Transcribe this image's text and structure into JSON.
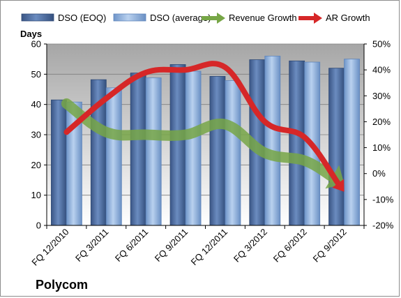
{
  "company": "Polycom",
  "chart_data": {
    "type": "bar",
    "categories": [
      "FQ 12/2010",
      "FQ 3/2011",
      "FQ 6/2011",
      "FQ 9/2011",
      "FQ 12/2011",
      "FQ 3/2012",
      "FQ 6/2012",
      "FQ 9/2012"
    ],
    "series": [
      {
        "name": "DSO (EOQ)",
        "kind": "bar",
        "axis": "left",
        "color": "#4f6fa0",
        "values": [
          41.5,
          48.2,
          50.4,
          53.2,
          49.3,
          54.8,
          54.4,
          52.0
        ]
      },
      {
        "name": "DSO (average)",
        "kind": "bar",
        "axis": "left",
        "color": "#8db3e2",
        "values": [
          40.8,
          45.5,
          48.8,
          51.0,
          47.9,
          56.0,
          54.0,
          55.0
        ]
      },
      {
        "name": "Revenue Growth",
        "kind": "arrow",
        "axis": "right",
        "color": "#77a646",
        "values": [
          27,
          16,
          15,
          15,
          19,
          8,
          5,
          -4
        ]
      },
      {
        "name": "AR Growth",
        "kind": "arrow",
        "axis": "right",
        "color": "#d62728",
        "values": [
          16,
          29,
          39,
          40,
          41,
          20,
          14,
          -7
        ]
      }
    ],
    "ylabel": "Days",
    "ylim": [
      0,
      60
    ],
    "y_ticks": [
      "0",
      "10",
      "20",
      "30",
      "40",
      "50",
      "60"
    ],
    "y2lim": [
      -20,
      50
    ],
    "y2_ticks": [
      "-20%",
      "-10%",
      "0%",
      "10%",
      "20%",
      "30%",
      "40%",
      "50%"
    ],
    "grid": true,
    "legend_position": "top"
  }
}
